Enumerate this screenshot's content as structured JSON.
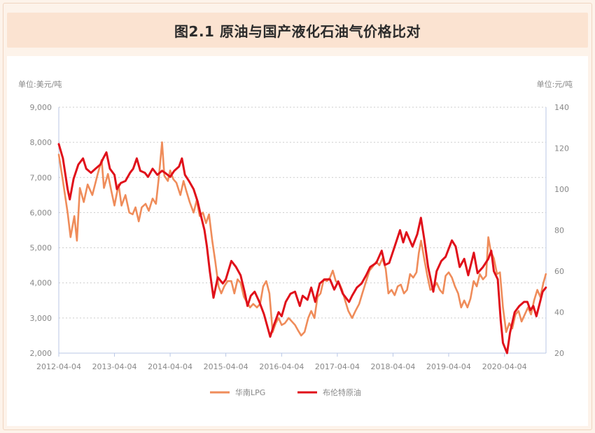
{
  "header": {
    "title": "图2.1 原油与国产液化石油气价格比对"
  },
  "colors": {
    "lpg": "#ef8c5a",
    "brent": "#e0101a",
    "axis": "#b9c7e6",
    "grid": "#cccccc"
  },
  "chart_data": {
    "type": "line",
    "title": "图2.1 原油与国产液化石油气价格比对",
    "left_axis": {
      "unit_label": "单位:美元/吨",
      "range": [
        2000,
        9000
      ],
      "ticks": [
        "9,000",
        "8,000",
        "7,000",
        "6,000",
        "5,000",
        "4,000",
        "3,000",
        "2,000"
      ],
      "tick_values": [
        9000,
        8000,
        7000,
        6000,
        5000,
        4000,
        3000,
        2000
      ]
    },
    "right_axis": {
      "unit_label": "单位:元/吨",
      "range": [
        20,
        140
      ],
      "ticks": [
        "140",
        "120",
        "100",
        "80",
        "60",
        "40",
        "20"
      ],
      "tick_values": [
        140,
        120,
        100,
        80,
        60,
        40,
        20
      ]
    },
    "x_ticks": [
      "2012-04-04",
      "2013-04-04",
      "2014-04-04",
      "2015-04-04",
      "2016-04-04",
      "2017-04-04",
      "2018-04-04",
      "2019-04-04",
      "2020-04-04"
    ],
    "x_range": [
      "2012-04-04",
      "2021-01-01"
    ],
    "grid": true,
    "legend": "bottom",
    "series": [
      {
        "name": "华南LPG",
        "axis": "left",
        "points": [
          [
            "2012-04-04",
            7650
          ],
          [
            "2012-05-01",
            6900
          ],
          [
            "2012-06-01",
            6000
          ],
          [
            "2012-06-20",
            5300
          ],
          [
            "2012-07-15",
            5900
          ],
          [
            "2012-08-01",
            5200
          ],
          [
            "2012-08-20",
            6700
          ],
          [
            "2012-09-15",
            6300
          ],
          [
            "2012-10-10",
            6800
          ],
          [
            "2012-11-10",
            6500
          ],
          [
            "2012-12-15",
            7100
          ],
          [
            "2013-01-10",
            7500
          ],
          [
            "2013-01-25",
            6700
          ],
          [
            "2013-02-20",
            7100
          ],
          [
            "2013-03-15",
            6600
          ],
          [
            "2013-04-04",
            6200
          ],
          [
            "2013-05-01",
            6800
          ],
          [
            "2013-05-20",
            6200
          ],
          [
            "2013-06-15",
            6500
          ],
          [
            "2013-07-10",
            6000
          ],
          [
            "2013-08-01",
            5950
          ],
          [
            "2013-08-20",
            6150
          ],
          [
            "2013-09-10",
            5750
          ],
          [
            "2013-09-30",
            6150
          ],
          [
            "2013-10-25",
            6250
          ],
          [
            "2013-11-15",
            6050
          ],
          [
            "2013-12-10",
            6400
          ],
          [
            "2014-01-01",
            6250
          ],
          [
            "2014-01-20",
            7000
          ],
          [
            "2014-02-10",
            8000
          ],
          [
            "2014-02-25",
            7050
          ],
          [
            "2014-03-20",
            6900
          ],
          [
            "2014-04-04",
            7200
          ],
          [
            "2014-04-25",
            6950
          ],
          [
            "2014-05-15",
            6850
          ],
          [
            "2014-06-10",
            6500
          ],
          [
            "2014-07-01",
            6900
          ],
          [
            "2014-07-20",
            6600
          ],
          [
            "2014-08-10",
            6300
          ],
          [
            "2014-09-05",
            6000
          ],
          [
            "2014-09-25",
            6350
          ],
          [
            "2014-10-15",
            5900
          ],
          [
            "2014-11-05",
            6000
          ],
          [
            "2014-11-25",
            5700
          ],
          [
            "2014-12-15",
            5950
          ],
          [
            "2015-01-05",
            5200
          ],
          [
            "2015-01-25",
            4600
          ],
          [
            "2015-02-15",
            3900
          ],
          [
            "2015-03-05",
            3700
          ],
          [
            "2015-03-25",
            3900
          ],
          [
            "2015-04-15",
            4050
          ],
          [
            "2015-05-10",
            4050
          ],
          [
            "2015-05-30",
            3700
          ],
          [
            "2015-06-20",
            4100
          ],
          [
            "2015-07-10",
            4000
          ],
          [
            "2015-08-01",
            3600
          ],
          [
            "2015-08-20",
            3450
          ],
          [
            "2015-09-10",
            3300
          ],
          [
            "2015-10-01",
            3400
          ],
          [
            "2015-10-25",
            3300
          ],
          [
            "2015-11-15",
            3400
          ],
          [
            "2015-12-05",
            3900
          ],
          [
            "2015-12-25",
            4050
          ],
          [
            "2016-01-15",
            3700
          ],
          [
            "2016-02-05",
            2600
          ],
          [
            "2016-02-25",
            2850
          ],
          [
            "2016-03-15",
            3000
          ],
          [
            "2016-04-04",
            2800
          ],
          [
            "2016-04-25",
            2850
          ],
          [
            "2016-05-20",
            3000
          ],
          [
            "2016-06-10",
            2900
          ],
          [
            "2016-07-01",
            2800
          ],
          [
            "2016-07-20",
            2650
          ],
          [
            "2016-08-10",
            2500
          ],
          [
            "2016-09-01",
            2600
          ],
          [
            "2016-09-25",
            3000
          ],
          [
            "2016-10-15",
            3200
          ],
          [
            "2016-11-05",
            3000
          ],
          [
            "2016-11-25",
            3600
          ],
          [
            "2016-12-15",
            3700
          ],
          [
            "2017-01-05",
            4100
          ],
          [
            "2017-01-25",
            4050
          ],
          [
            "2017-02-15",
            4150
          ],
          [
            "2017-03-05",
            4350
          ],
          [
            "2017-03-25",
            4050
          ],
          [
            "2017-04-15",
            4000
          ],
          [
            "2017-05-05",
            3800
          ],
          [
            "2017-05-25",
            3500
          ],
          [
            "2017-06-15",
            3200
          ],
          [
            "2017-07-10",
            3000
          ],
          [
            "2017-08-01",
            3200
          ],
          [
            "2017-08-25",
            3400
          ],
          [
            "2017-09-15",
            3700
          ],
          [
            "2017-10-10",
            4050
          ],
          [
            "2017-11-01",
            4350
          ],
          [
            "2017-11-20",
            4450
          ],
          [
            "2017-12-15",
            4600
          ],
          [
            "2018-01-05",
            4500
          ],
          [
            "2018-01-25",
            4700
          ],
          [
            "2018-02-15",
            4400
          ],
          [
            "2018-03-05",
            3700
          ],
          [
            "2018-03-25",
            3800
          ],
          [
            "2018-04-15",
            3650
          ],
          [
            "2018-05-05",
            3900
          ],
          [
            "2018-05-25",
            3950
          ],
          [
            "2018-06-15",
            3700
          ],
          [
            "2018-07-05",
            3800
          ],
          [
            "2018-07-25",
            4250
          ],
          [
            "2018-08-15",
            4150
          ],
          [
            "2018-09-05",
            4300
          ],
          [
            "2018-09-20",
            4850
          ],
          [
            "2018-10-05",
            5200
          ],
          [
            "2018-10-25",
            4700
          ],
          [
            "2018-11-15",
            4200
          ],
          [
            "2018-12-05",
            3800
          ],
          [
            "2018-12-25",
            3850
          ],
          [
            "2019-01-15",
            4000
          ],
          [
            "2019-02-05",
            3800
          ],
          [
            "2019-02-25",
            3700
          ],
          [
            "2019-03-15",
            4200
          ],
          [
            "2019-04-04",
            4300
          ],
          [
            "2019-04-25",
            4150
          ],
          [
            "2019-05-15",
            3900
          ],
          [
            "2019-06-05",
            3700
          ],
          [
            "2019-06-25",
            3300
          ],
          [
            "2019-07-15",
            3500
          ],
          [
            "2019-08-05",
            3300
          ],
          [
            "2019-08-25",
            3550
          ],
          [
            "2019-09-15",
            4050
          ],
          [
            "2019-10-05",
            3900
          ],
          [
            "2019-10-25",
            4250
          ],
          [
            "2019-11-15",
            4100
          ],
          [
            "2019-12-05",
            4200
          ],
          [
            "2019-12-20",
            5300
          ],
          [
            "2020-01-05",
            4900
          ],
          [
            "2020-01-25",
            4700
          ],
          [
            "2020-02-15",
            4250
          ],
          [
            "2020-03-05",
            4300
          ],
          [
            "2020-03-25",
            3300
          ],
          [
            "2020-04-15",
            2600
          ],
          [
            "2020-05-05",
            2850
          ],
          [
            "2020-05-25",
            2700
          ],
          [
            "2020-06-15",
            3100
          ],
          [
            "2020-07-05",
            3200
          ],
          [
            "2020-07-25",
            2900
          ],
          [
            "2020-08-15",
            3100
          ],
          [
            "2020-09-05",
            3300
          ],
          [
            "2020-09-25",
            3100
          ],
          [
            "2020-10-15",
            3500
          ],
          [
            "2020-11-05",
            3800
          ],
          [
            "2020-11-25",
            3600
          ],
          [
            "2020-12-15",
            4000
          ],
          [
            "2020-12-31",
            4250
          ]
        ]
      },
      {
        "name": "布伦特原油",
        "axis": "right",
        "points": [
          [
            "2012-04-04",
            122
          ],
          [
            "2012-05-01",
            115
          ],
          [
            "2012-06-01",
            100
          ],
          [
            "2012-06-15",
            95
          ],
          [
            "2012-07-10",
            105
          ],
          [
            "2012-08-10",
            112
          ],
          [
            "2012-09-10",
            115
          ],
          [
            "2012-10-01",
            110
          ],
          [
            "2012-11-01",
            108
          ],
          [
            "2012-12-01",
            110
          ],
          [
            "2013-01-01",
            112
          ],
          [
            "2013-01-20",
            115
          ],
          [
            "2013-02-10",
            118
          ],
          [
            "2013-03-05",
            110
          ],
          [
            "2013-04-04",
            107
          ],
          [
            "2013-04-20",
            100
          ],
          [
            "2013-05-15",
            103
          ],
          [
            "2013-06-15",
            104
          ],
          [
            "2013-07-15",
            108
          ],
          [
            "2013-08-05",
            110
          ],
          [
            "2013-08-28",
            115
          ],
          [
            "2013-09-20",
            109
          ],
          [
            "2013-10-20",
            108
          ],
          [
            "2013-11-10",
            106
          ],
          [
            "2013-12-10",
            110
          ],
          [
            "2014-01-10",
            107
          ],
          [
            "2014-02-10",
            109
          ],
          [
            "2014-03-01",
            108
          ],
          [
            "2014-04-04",
            106
          ],
          [
            "2014-05-01",
            109
          ],
          [
            "2014-06-01",
            111
          ],
          [
            "2014-06-20",
            115
          ],
          [
            "2014-07-10",
            107
          ],
          [
            "2014-08-05",
            104
          ],
          [
            "2014-09-05",
            100
          ],
          [
            "2014-10-01",
            94
          ],
          [
            "2014-10-20",
            88
          ],
          [
            "2014-11-15",
            80
          ],
          [
            "2014-12-01",
            72
          ],
          [
            "2014-12-20",
            60
          ],
          [
            "2015-01-13",
            47
          ],
          [
            "2015-02-10",
            57
          ],
          [
            "2015-03-15",
            54
          ],
          [
            "2015-04-04",
            56
          ],
          [
            "2015-05-10",
            65
          ],
          [
            "2015-06-10",
            62
          ],
          [
            "2015-07-10",
            58
          ],
          [
            "2015-08-05",
            50
          ],
          [
            "2015-08-24",
            43
          ],
          [
            "2015-09-15",
            48
          ],
          [
            "2015-10-10",
            50
          ],
          [
            "2015-11-10",
            45
          ],
          [
            "2015-12-10",
            39
          ],
          [
            "2016-01-20",
            28
          ],
          [
            "2016-02-10",
            33
          ],
          [
            "2016-03-15",
            40
          ],
          [
            "2016-04-04",
            38
          ],
          [
            "2016-05-01",
            45
          ],
          [
            "2016-06-01",
            49
          ],
          [
            "2016-07-01",
            50
          ],
          [
            "2016-08-01",
            43
          ],
          [
            "2016-08-20",
            48
          ],
          [
            "2016-09-20",
            46
          ],
          [
            "2016-10-15",
            52
          ],
          [
            "2016-11-10",
            45
          ],
          [
            "2016-12-10",
            54
          ],
          [
            "2017-01-10",
            56
          ],
          [
            "2017-02-15",
            56
          ],
          [
            "2017-03-15",
            51
          ],
          [
            "2017-04-10",
            55
          ],
          [
            "2017-05-10",
            49
          ],
          [
            "2017-06-20",
            45
          ],
          [
            "2017-07-10",
            48
          ],
          [
            "2017-08-10",
            52
          ],
          [
            "2017-09-10",
            54
          ],
          [
            "2017-10-10",
            58
          ],
          [
            "2017-11-05",
            62
          ],
          [
            "2017-12-15",
            64
          ],
          [
            "2018-01-20",
            70
          ],
          [
            "2018-02-10",
            63
          ],
          [
            "2018-03-10",
            64
          ],
          [
            "2018-04-15",
            72
          ],
          [
            "2018-05-20",
            80
          ],
          [
            "2018-06-10",
            74
          ],
          [
            "2018-07-01",
            79
          ],
          [
            "2018-08-10",
            72
          ],
          [
            "2018-09-10",
            78
          ],
          [
            "2018-10-04",
            86
          ],
          [
            "2018-10-25",
            76
          ],
          [
            "2018-11-20",
            62
          ],
          [
            "2018-12-24",
            50
          ],
          [
            "2019-01-15",
            60
          ],
          [
            "2019-02-15",
            65
          ],
          [
            "2019-03-15",
            67
          ],
          [
            "2019-04-25",
            75
          ],
          [
            "2019-05-20",
            72
          ],
          [
            "2019-06-15",
            62
          ],
          [
            "2019-07-15",
            66
          ],
          [
            "2019-08-10",
            58
          ],
          [
            "2019-09-16",
            69
          ],
          [
            "2019-10-10",
            59
          ],
          [
            "2019-11-15",
            62
          ],
          [
            "2019-12-20",
            66
          ],
          [
            "2020-01-08",
            70
          ],
          [
            "2020-01-25",
            60
          ],
          [
            "2020-02-20",
            56
          ],
          [
            "2020-03-10",
            36
          ],
          [
            "2020-03-25",
            25
          ],
          [
            "2020-04-21",
            20
          ],
          [
            "2020-05-10",
            30
          ],
          [
            "2020-06-10",
            40
          ],
          [
            "2020-07-10",
            43
          ],
          [
            "2020-08-10",
            45
          ],
          [
            "2020-09-01",
            45
          ],
          [
            "2020-09-20",
            41
          ],
          [
            "2020-10-10",
            43
          ],
          [
            "2020-10-30",
            38
          ],
          [
            "2020-11-20",
            44
          ],
          [
            "2020-12-10",
            50
          ],
          [
            "2020-12-31",
            52
          ]
        ]
      }
    ]
  }
}
